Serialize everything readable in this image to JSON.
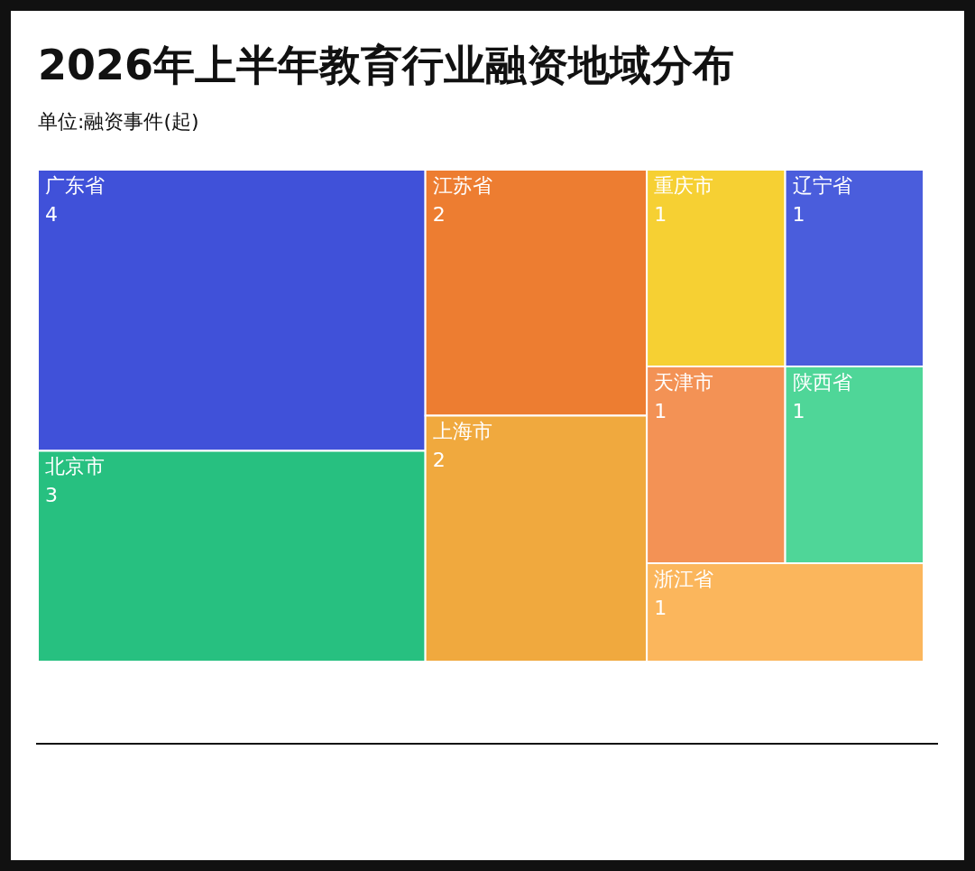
{
  "chart_data": {
    "type": "other",
    "title": "2026年上半年教育行业融资地域分布",
    "subtitle": "单位:融资事件(起)",
    "categories": [
      "广东省",
      "北京市",
      "江苏省",
      "上海市",
      "重庆市",
      "辽宁省",
      "天津市",
      "陕西省",
      "浙江省"
    ],
    "values": [
      4,
      3,
      2,
      2,
      1,
      1,
      1,
      1,
      1
    ],
    "colors": [
      "#4051d9",
      "#27c080",
      "#ed7d31",
      "#f0a93e",
      "#f6d033",
      "#4a5ddc",
      "#f39255",
      "#4fd698",
      "#fbb65c"
    ],
    "data_labels": true
  }
}
